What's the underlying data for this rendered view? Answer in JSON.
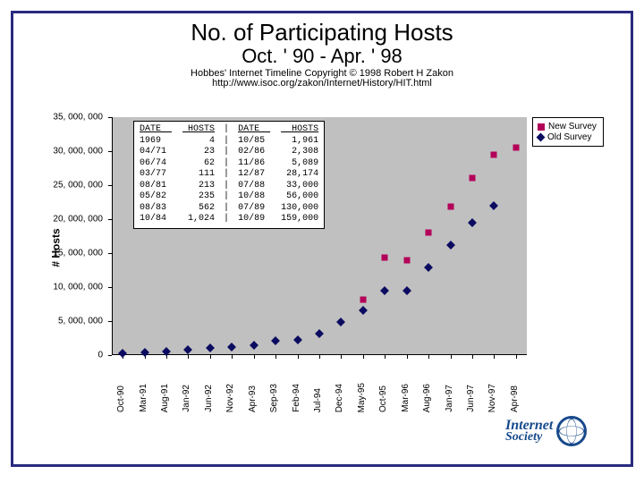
{
  "title": {
    "line1": "No. of Participating Hosts",
    "line2": "Oct. ' 90 - Apr. ' 98"
  },
  "attribution": {
    "line1": "Hobbes' Internet Timeline Copyright © 1998 Robert H Zakon",
    "line2": "http://www.isoc.org/zakon/Internet/History/HIT.html"
  },
  "axes": {
    "y_label": "# Hosts",
    "y_ticks": [
      0,
      5000000,
      10000000,
      15000000,
      20000000,
      25000000,
      30000000,
      35000000
    ],
    "y_tick_labels": [
      "0",
      "5, 000, 000",
      "10, 000, 000",
      "15, 000, 000",
      "20, 000, 000",
      "25, 000, 000",
      "30, 000, 000",
      "35, 000, 000"
    ],
    "ymin": 0,
    "ymax": 35000000,
    "x_labels": [
      "Oct-90",
      "Mar-91",
      "Aug-91",
      "Jan-92",
      "Jun-92",
      "Nov-92",
      "Apr-93",
      "Sep-93",
      "Feb-94",
      "Jul-94",
      "Dec-94",
      "May-95",
      "Oct-95",
      "Mar-96",
      "Aug-96",
      "Jan-97",
      "Jun-97",
      "Nov-97",
      "Apr-98"
    ]
  },
  "chart": {
    "type": "scatter",
    "background_color": "#c0c0c0",
    "frame_border_color": "#2a2a80",
    "series": [
      {
        "name": "Old Survey",
        "marker": "diamond",
        "color": "#0b0b60",
        "points": [
          {
            "x": "Oct-90",
            "y": 313000
          },
          {
            "x": "Mar-91",
            "y": 400000
          },
          {
            "x": "Aug-91",
            "y": 535000
          },
          {
            "x": "Jan-92",
            "y": 727000
          },
          {
            "x": "Jun-92",
            "y": 992000
          },
          {
            "x": "Nov-92",
            "y": 1200000
          },
          {
            "x": "Apr-93",
            "y": 1486000
          },
          {
            "x": "Sep-93",
            "y": 2056000
          },
          {
            "x": "Feb-94",
            "y": 2217000
          },
          {
            "x": "Jul-94",
            "y": 3212000
          },
          {
            "x": "Dec-94",
            "y": 4852000
          },
          {
            "x": "May-95",
            "y": 6642000
          },
          {
            "x": "Oct-95",
            "y": 9472000
          },
          {
            "x": "Mar-96",
            "y": 9500000
          },
          {
            "x": "Aug-96",
            "y": 12881000
          },
          {
            "x": "Jan-97",
            "y": 16146000
          },
          {
            "x": "Jun-97",
            "y": 19540000
          },
          {
            "x": "Nov-97",
            "y": 22000000
          }
        ]
      },
      {
        "name": "New Survey",
        "marker": "square",
        "color": "#b30059",
        "points": [
          {
            "x": "May-95",
            "y": 8200000
          },
          {
            "x": "Oct-95",
            "y": 14352000
          },
          {
            "x": "Mar-96",
            "y": 14000000
          },
          {
            "x": "Aug-96",
            "y": 18000000
          },
          {
            "x": "Jan-97",
            "y": 21819000
          },
          {
            "x": "Jun-97",
            "y": 26053000
          },
          {
            "x": "Nov-97",
            "y": 29500000
          },
          {
            "x": "Apr-98",
            "y": 30500000
          }
        ]
      }
    ]
  },
  "legend": {
    "items": [
      {
        "marker": "square",
        "color": "#b30059",
        "label": "New Survey"
      },
      {
        "marker": "diamond",
        "color": "#0b0b60",
        "label": "Old Survey"
      }
    ]
  },
  "data_table": {
    "columns_left": {
      "header1": "DATE",
      "header2": "HOSTS",
      "rows": [
        [
          "1969",
          "4"
        ],
        [
          "04/71",
          "23"
        ],
        [
          "06/74",
          "62"
        ],
        [
          "03/77",
          "111"
        ],
        [
          "08/81",
          "213"
        ],
        [
          "05/82",
          "235"
        ],
        [
          "08/83",
          "562"
        ],
        [
          "10/84",
          "1,024"
        ]
      ]
    },
    "columns_right": {
      "header1": "DATE",
      "header2": "HOSTS",
      "rows": [
        [
          "10/85",
          "1,961"
        ],
        [
          "02/86",
          "2,308"
        ],
        [
          "11/86",
          "5,089"
        ],
        [
          "12/87",
          "28,174"
        ],
        [
          "07/88",
          "33,000"
        ],
        [
          "10/88",
          "56,000"
        ],
        [
          "07/89",
          "130,000"
        ],
        [
          "10/89",
          "159,000"
        ]
      ]
    }
  },
  "logo": {
    "line1": "Internet",
    "line2": "Society"
  }
}
